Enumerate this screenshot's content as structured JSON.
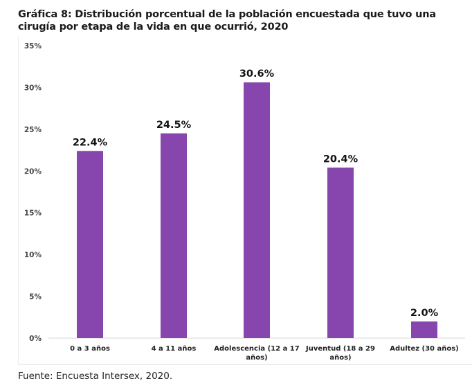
{
  "title": "Gráfica 8: Distribución porcentual de la población encuestada que tuvo una cirugía por etapa de la vida en que ocurrió, 2020",
  "source": "Fuente: Encuesta Intersex, 2020.",
  "colors": {
    "bar": "#8646AE",
    "axis_text": "#444444",
    "grid": "#e6e6e6"
  },
  "chart_data": {
    "type": "bar",
    "title": "Gráfica 8: Distribución porcentual de la población encuestada que tuvo una cirugía por etapa de la vida en que ocurrió, 2020",
    "categories": [
      [
        "0 a 3 años"
      ],
      [
        "4 a 11 años"
      ],
      [
        "Adolescencia (12 a 17",
        "años)"
      ],
      [
        "Juventud (18 a 29",
        "años)"
      ],
      [
        "Adultez (30 años)"
      ]
    ],
    "values": [
      22.4,
      24.5,
      30.6,
      20.4,
      2.0
    ],
    "data_labels": [
      "22.4%",
      "24.5%",
      "30.6%",
      "20.4%",
      "2.0%"
    ],
    "ylim": [
      0,
      35
    ],
    "yticks": [
      "0%",
      "5%",
      "10%",
      "15%",
      "20%",
      "25%",
      "30%",
      "35%"
    ],
    "xlabel": "",
    "ylabel": "",
    "grid": false,
    "legend": "none"
  }
}
